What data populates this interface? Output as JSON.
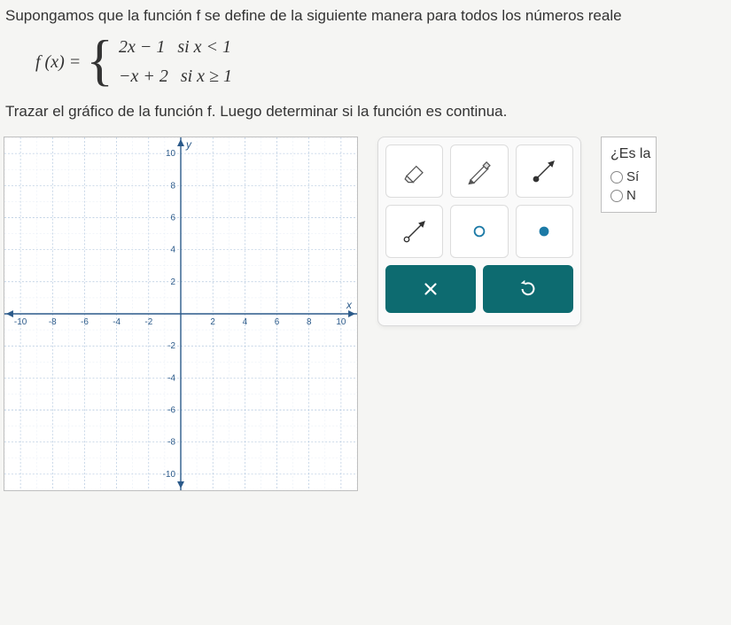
{
  "problem_intro": "Supongamos que la función f se define de la siguiente manera para todos los números reale",
  "piecewise": {
    "lhs": "f (x) =",
    "cases": [
      {
        "expr": "2x − 1",
        "cond": "si  x < 1"
      },
      {
        "expr": "−x + 2",
        "cond": "si  x ≥ 1"
      }
    ]
  },
  "instruction": "Trazar el gráfico de la función f. Luego determinar si la función es continua.",
  "graph": {
    "x_axis_label": "x",
    "y_axis_label": "y",
    "xlim": [
      -11,
      11
    ],
    "ylim": [
      -11,
      11
    ],
    "xticks": [
      -10,
      -8,
      -6,
      -4,
      -2,
      2,
      4,
      6,
      8,
      10
    ],
    "yticks": [
      -10,
      -8,
      -6,
      -4,
      -2,
      2,
      4,
      6,
      8,
      10
    ],
    "grid_step": 1,
    "background_color": "#ffffff",
    "major_grid_color": "#9fb9d6",
    "minor_grid_color": "#d9e4f0",
    "axis_color": "#2b5a8a",
    "tick_label_color": "#2b5a8a",
    "tick_fontsize": 10
  },
  "palette": {
    "tools": [
      {
        "name": "eraser-icon"
      },
      {
        "name": "pencil-icon"
      },
      {
        "name": "ray-closed-icon"
      },
      {
        "name": "ray-open-icon"
      },
      {
        "name": "open-point-icon"
      },
      {
        "name": "closed-point-icon"
      }
    ],
    "action_clear": "×",
    "action_undo": "↺",
    "tool_bg": "#ffffff",
    "tool_border": "#dcdcdc",
    "action_bg": "#0d6b70",
    "open_point_stroke": "#1c7aa6",
    "closed_point_fill": "#1c7aa6"
  },
  "answer_panel": {
    "question": "¿Es la",
    "options": [
      {
        "label": "Sí"
      },
      {
        "label": "N"
      }
    ]
  }
}
